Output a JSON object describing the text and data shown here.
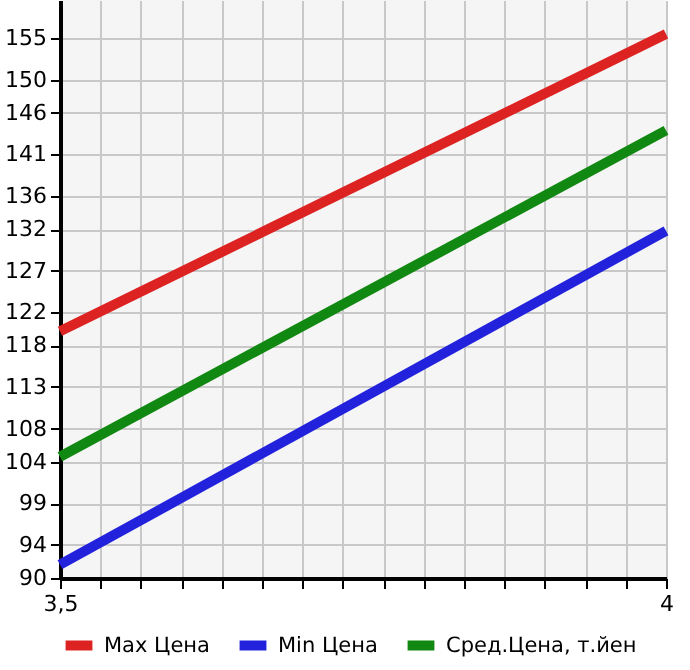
{
  "chart_data": {
    "type": "line",
    "x": [
      3.5,
      4
    ],
    "series": [
      {
        "name": "Max Цена",
        "color": "#dd2222",
        "values": [
          119.7,
          155.5
        ]
      },
      {
        "name": "Min Цена",
        "color": "#2222dd",
        "values": [
          91.6,
          131.8
        ]
      },
      {
        "name": "Сред.Цена, т.йен",
        "color": "#118811",
        "values": [
          104.6,
          143.9
        ]
      }
    ],
    "xlim": [
      3.5,
      4
    ],
    "xticks": [
      {
        "value": 3.5,
        "label": "3,5"
      },
      {
        "value": 3.5333,
        "label": null
      },
      {
        "value": 3.5667,
        "label": null
      },
      {
        "value": 3.6,
        "label": null
      },
      {
        "value": 3.6333,
        "label": null
      },
      {
        "value": 3.6667,
        "label": null
      },
      {
        "value": 3.7,
        "label": null
      },
      {
        "value": 3.7333,
        "label": null
      },
      {
        "value": 3.7667,
        "label": null
      },
      {
        "value": 3.8,
        "label": null
      },
      {
        "value": 3.8333,
        "label": null
      },
      {
        "value": 3.8667,
        "label": null
      },
      {
        "value": 3.9,
        "label": null
      },
      {
        "value": 3.9333,
        "label": null
      },
      {
        "value": 3.9667,
        "label": null
      },
      {
        "value": 4,
        "label": "4"
      }
    ],
    "ylim": [
      90,
      159.6
    ],
    "yticks": [
      90,
      94,
      99,
      104,
      108,
      113,
      118,
      122,
      127,
      132,
      136,
      141,
      146,
      150,
      155
    ],
    "grid": true,
    "legend": "bottom",
    "marker": "none",
    "line_style": "solid"
  }
}
